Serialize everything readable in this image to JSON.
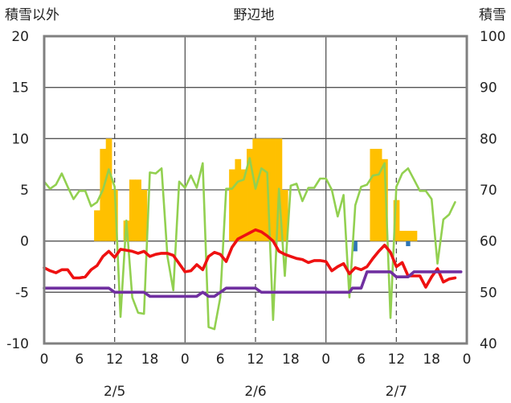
{
  "chart_data": {
    "type": "line",
    "title": "野辺地",
    "left_axis_label": "積雪以外",
    "right_axis_label": "積雪",
    "y_left": {
      "min": -10,
      "max": 20,
      "ticks": [
        "-10",
        "-5",
        "0",
        "5",
        "10",
        "15",
        "20"
      ]
    },
    "y_right": {
      "min": 40,
      "max": 100,
      "ticks": [
        "40",
        "50",
        "60",
        "70",
        "80",
        "90",
        "100"
      ]
    },
    "x": {
      "min": 0,
      "max": 72,
      "tick_hours": [
        0,
        6,
        12,
        18,
        24,
        30,
        36,
        42,
        48,
        54,
        60,
        66,
        72
      ],
      "tick_labels": [
        "0",
        "6",
        "12",
        "18",
        "0",
        "6",
        "12",
        "18",
        "0",
        "6",
        "12",
        "18",
        "0"
      ]
    },
    "day_labels": [
      {
        "label": "2/5",
        "at": 12
      },
      {
        "label": "2/6",
        "at": 36
      },
      {
        "label": "2/7",
        "at": 60
      }
    ],
    "colors": {
      "bars": "#FFC000",
      "bars_blue": "#2E75B6",
      "red": "#EE1111",
      "green": "#92D050",
      "purple": "#7030A0",
      "grid": "#555555",
      "frame": "#808080"
    },
    "bars_orange": [
      [
        9,
        3
      ],
      [
        10,
        9
      ],
      [
        11,
        10
      ],
      [
        12,
        5
      ],
      [
        14,
        2
      ],
      [
        15,
        6
      ],
      [
        16,
        6
      ],
      [
        17,
        5
      ],
      [
        32,
        7
      ],
      [
        33,
        8
      ],
      [
        34,
        7
      ],
      [
        35,
        9
      ],
      [
        36,
        10
      ],
      [
        37,
        10
      ],
      [
        38,
        10
      ],
      [
        39,
        10
      ],
      [
        40,
        10
      ],
      [
        41,
        5
      ],
      [
        56,
        9
      ],
      [
        57,
        9
      ],
      [
        58,
        8
      ],
      [
        60,
        4
      ],
      [
        61,
        1
      ],
      [
        62,
        1
      ],
      [
        63,
        1
      ]
    ],
    "bars_blue": [
      [
        53,
        -1
      ],
      [
        62,
        -0.5
      ]
    ],
    "red_series": [
      [
        0,
        -2.6
      ],
      [
        1,
        -2.9
      ],
      [
        2,
        -3.1
      ],
      [
        3,
        -2.8
      ],
      [
        4,
        -2.8
      ],
      [
        5,
        -3.6
      ],
      [
        6,
        -3.6
      ],
      [
        7,
        -3.5
      ],
      [
        8,
        -2.8
      ],
      [
        9,
        -2.4
      ],
      [
        10,
        -1.5
      ],
      [
        11,
        -1.0
      ],
      [
        12,
        -1.6
      ],
      [
        13,
        -0.8
      ],
      [
        14,
        -0.9
      ],
      [
        15,
        -1.0
      ],
      [
        16,
        -1.2
      ],
      [
        17,
        -1.0
      ],
      [
        18,
        -1.5
      ],
      [
        19,
        -1.3
      ],
      [
        20,
        -1.2
      ],
      [
        21,
        -1.2
      ],
      [
        22,
        -1.4
      ],
      [
        23,
        -2.2
      ],
      [
        24,
        -3.0
      ],
      [
        25,
        -2.9
      ],
      [
        26,
        -2.3
      ],
      [
        27,
        -2.8
      ],
      [
        28,
        -1.5
      ],
      [
        29,
        -1.1
      ],
      [
        30,
        -1.3
      ],
      [
        31,
        -2.0
      ],
      [
        32,
        -0.6
      ],
      [
        33,
        0.2
      ],
      [
        34,
        0.5
      ],
      [
        35,
        0.8
      ],
      [
        36,
        1.1
      ],
      [
        37,
        0.9
      ],
      [
        38,
        0.5
      ],
      [
        39,
        0.0
      ],
      [
        40,
        -1.0
      ],
      [
        41,
        -1.3
      ],
      [
        42,
        -1.5
      ],
      [
        43,
        -1.7
      ],
      [
        44,
        -1.8
      ],
      [
        45,
        -2.1
      ],
      [
        46,
        -1.9
      ],
      [
        47,
        -1.9
      ],
      [
        48,
        -2.0
      ],
      [
        49,
        -2.9
      ],
      [
        50,
        -2.5
      ],
      [
        51,
        -2.2
      ],
      [
        52,
        -3.2
      ],
      [
        53,
        -2.6
      ],
      [
        54,
        -2.8
      ],
      [
        55,
        -2.5
      ],
      [
        56,
        -1.7
      ],
      [
        57,
        -1.0
      ],
      [
        58,
        -0.4
      ],
      [
        59,
        -1.1
      ],
      [
        60,
        -2.5
      ],
      [
        61,
        -2.1
      ],
      [
        62,
        -3.4
      ],
      [
        63,
        -3.4
      ],
      [
        64,
        -3.4
      ],
      [
        65,
        -4.5
      ],
      [
        66,
        -3.5
      ],
      [
        67,
        -2.7
      ],
      [
        68,
        -4.0
      ],
      [
        69,
        -3.7
      ],
      [
        70,
        -3.6
      ]
    ],
    "green_series": [
      [
        0,
        5.8
      ],
      [
        1,
        5.1
      ],
      [
        2,
        5.5
      ],
      [
        3,
        6.6
      ],
      [
        4,
        5.3
      ],
      [
        5,
        4.1
      ],
      [
        6,
        4.9
      ],
      [
        7,
        4.9
      ],
      [
        8,
        3.4
      ],
      [
        9,
        3.8
      ],
      [
        10,
        5.0
      ],
      [
        11,
        7.0
      ],
      [
        12,
        5.3
      ],
      [
        13,
        -7.4
      ],
      [
        14,
        2.0
      ],
      [
        15,
        -5.5
      ],
      [
        16,
        -7.0
      ],
      [
        17,
        -7.1
      ],
      [
        18,
        6.7
      ],
      [
        19,
        6.6
      ],
      [
        20,
        7.1
      ],
      [
        21,
        -1.5
      ],
      [
        22,
        -4.8
      ],
      [
        23,
        5.8
      ],
      [
        24,
        5.2
      ],
      [
        25,
        6.4
      ],
      [
        26,
        5.2
      ],
      [
        27,
        7.6
      ],
      [
        28,
        -8.4
      ],
      [
        29,
        -8.6
      ],
      [
        30,
        -5.5
      ],
      [
        31,
        5.1
      ],
      [
        32,
        5.1
      ],
      [
        33,
        5.8
      ],
      [
        34,
        6.0
      ],
      [
        35,
        8.1
      ],
      [
        36,
        5.1
      ],
      [
        37,
        7.1
      ],
      [
        38,
        6.7
      ],
      [
        39,
        -7.7
      ],
      [
        40,
        5.1
      ],
      [
        41,
        -3.4
      ],
      [
        42,
        5.4
      ],
      [
        43,
        5.6
      ],
      [
        44,
        3.9
      ],
      [
        45,
        5.2
      ],
      [
        46,
        5.2
      ],
      [
        47,
        6.1
      ],
      [
        48,
        6.1
      ],
      [
        49,
        5.0
      ],
      [
        50,
        2.4
      ],
      [
        51,
        4.5
      ],
      [
        52,
        -5.5
      ],
      [
        53,
        3.5
      ],
      [
        54,
        5.3
      ],
      [
        55,
        5.5
      ],
      [
        56,
        6.4
      ],
      [
        57,
        6.5
      ],
      [
        58,
        7.6
      ],
      [
        59,
        -7.5
      ],
      [
        60,
        5.3
      ],
      [
        61,
        6.6
      ],
      [
        62,
        7.1
      ],
      [
        63,
        6.0
      ],
      [
        64,
        4.9
      ],
      [
        65,
        4.9
      ],
      [
        66,
        4.1
      ],
      [
        67,
        -2.2
      ],
      [
        68,
        2.1
      ],
      [
        69,
        2.6
      ],
      [
        70,
        3.8
      ]
    ],
    "purple_series": [
      [
        0,
        -4.6
      ],
      [
        11,
        -4.6
      ],
      [
        12,
        -5.0
      ],
      [
        17,
        -5.0
      ],
      [
        18,
        -5.4
      ],
      [
        24,
        -5.4
      ],
      [
        26,
        -5.4
      ],
      [
        27,
        -5.0
      ],
      [
        28,
        -5.4
      ],
      [
        29,
        -5.4
      ],
      [
        30,
        -5.0
      ],
      [
        31,
        -4.6
      ],
      [
        36,
        -4.6
      ],
      [
        37,
        -5.0
      ],
      [
        52,
        -5.0
      ],
      [
        52.5,
        -4.6
      ],
      [
        54,
        -4.6
      ],
      [
        55,
        -3.0
      ],
      [
        59,
        -3.0
      ],
      [
        60,
        -3.5
      ],
      [
        62,
        -3.5
      ],
      [
        63,
        -3.0
      ],
      [
        71,
        -3.0
      ]
    ]
  }
}
